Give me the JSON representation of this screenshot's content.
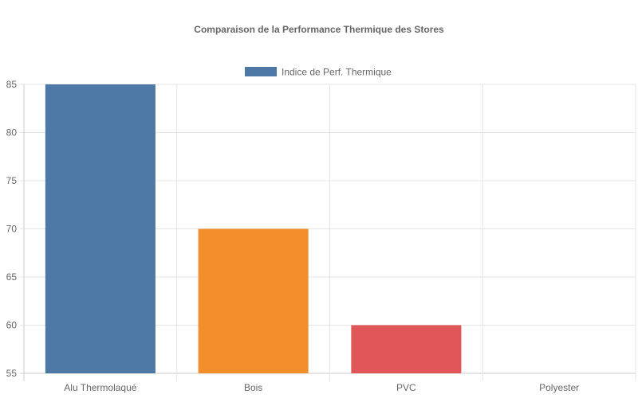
{
  "chart_data": {
    "type": "bar",
    "title": "Comparaison de la Performance Thermique des Stores",
    "categories": [
      "Alu Thermolaqué",
      "Bois",
      "PVC",
      "Polyester"
    ],
    "series": [
      {
        "name": "Indice de Perf. Thermique",
        "values": [
          85,
          70,
          60,
          55
        ]
      }
    ],
    "colors": [
      "#4e79a7",
      "#f28e2b",
      "#e15759",
      "#76b7b2"
    ],
    "legend_color": "#4e79a7",
    "ylim": [
      55,
      85
    ],
    "yticks": [
      55,
      60,
      65,
      70,
      75,
      80,
      85
    ],
    "grid": true,
    "legend_position": "top"
  }
}
